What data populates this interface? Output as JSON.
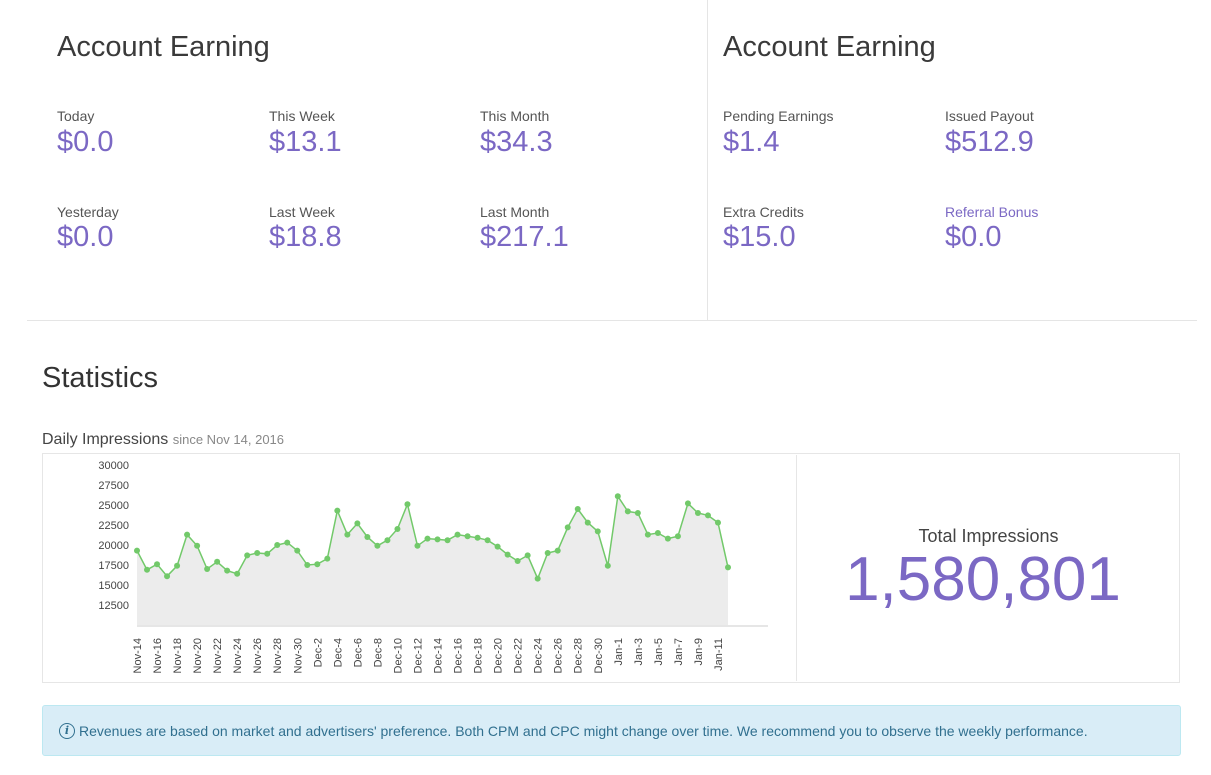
{
  "earnings_left": {
    "title": "Account Earning",
    "stats": [
      {
        "label": "Today",
        "value": "$0.0"
      },
      {
        "label": "This Week",
        "value": "$13.1"
      },
      {
        "label": "This Month",
        "value": "$34.3"
      },
      {
        "label": "Yesterday",
        "value": "$0.0"
      },
      {
        "label": "Last Week",
        "value": "$18.8"
      },
      {
        "label": "Last Month",
        "value": "$217.1"
      }
    ]
  },
  "earnings_right": {
    "title": "Account Earning",
    "stats": [
      {
        "label": "Pending Earnings",
        "value": "$1.4"
      },
      {
        "label": "Issued Payout",
        "value": "$512.9"
      },
      {
        "label": "Extra Credits",
        "value": "$15.0"
      },
      {
        "label": "Referral Bonus",
        "value": "$0.0"
      }
    ]
  },
  "statistics": {
    "title": "Statistics",
    "chart_heading": "Daily Impressions",
    "chart_subheading": "since Nov 14, 2016",
    "total_label": "Total Impressions",
    "total_value": "1,580,801"
  },
  "notice": {
    "icon": "info-icon",
    "text": "Revenues are based on market and advertisers' preference. Both CPM and CPC might change over time. We recommend you to observe the weekly performance."
  },
  "colors": {
    "accent": "#7b68c4",
    "line": "#72c96a",
    "area": "#ececec",
    "info_bg": "#d9edf7",
    "info_text": "#31708f"
  },
  "chart_data": {
    "type": "area",
    "title": "Daily Impressions",
    "xlabel": "",
    "ylabel": "",
    "y_ticks": [
      12500,
      15000,
      17500,
      20000,
      22500,
      25000,
      27500,
      30000
    ],
    "ylim": [
      10000,
      30000
    ],
    "x_tick_labels": [
      "Nov-14",
      "Nov-16",
      "Nov-18",
      "Nov-20",
      "Nov-22",
      "Nov-24",
      "Nov-26",
      "Nov-28",
      "Nov-30",
      "Dec-2",
      "Dec-4",
      "Dec-6",
      "Dec-8",
      "Dec-10",
      "Dec-12",
      "Dec-14",
      "Dec-16",
      "Dec-18",
      "Dec-20",
      "Dec-22",
      "Dec-24",
      "Dec-26",
      "Dec-28",
      "Dec-30",
      "Jan-1",
      "Jan-3",
      "Jan-5",
      "Jan-7",
      "Jan-9",
      "Jan-11"
    ],
    "series": [
      {
        "name": "Daily Impressions",
        "values": [
          19300,
          16900,
          17600,
          16100,
          17400,
          21300,
          19900,
          17000,
          17900,
          16800,
          16400,
          18700,
          19000,
          18900,
          20000,
          20300,
          19300,
          17500,
          17600,
          18300,
          24300,
          21300,
          22700,
          21000,
          19900,
          20600,
          22000,
          25100,
          19900,
          20800,
          20700,
          20600,
          21300,
          21100,
          20900,
          20600,
          19800,
          18800,
          18000,
          18700,
          15800,
          19000,
          19300,
          22200,
          24500,
          22800,
          21700,
          17400,
          26100,
          24200,
          24000,
          21300,
          21500,
          20800,
          21100,
          25200,
          24000,
          23700,
          22800,
          17200
        ]
      }
    ]
  }
}
